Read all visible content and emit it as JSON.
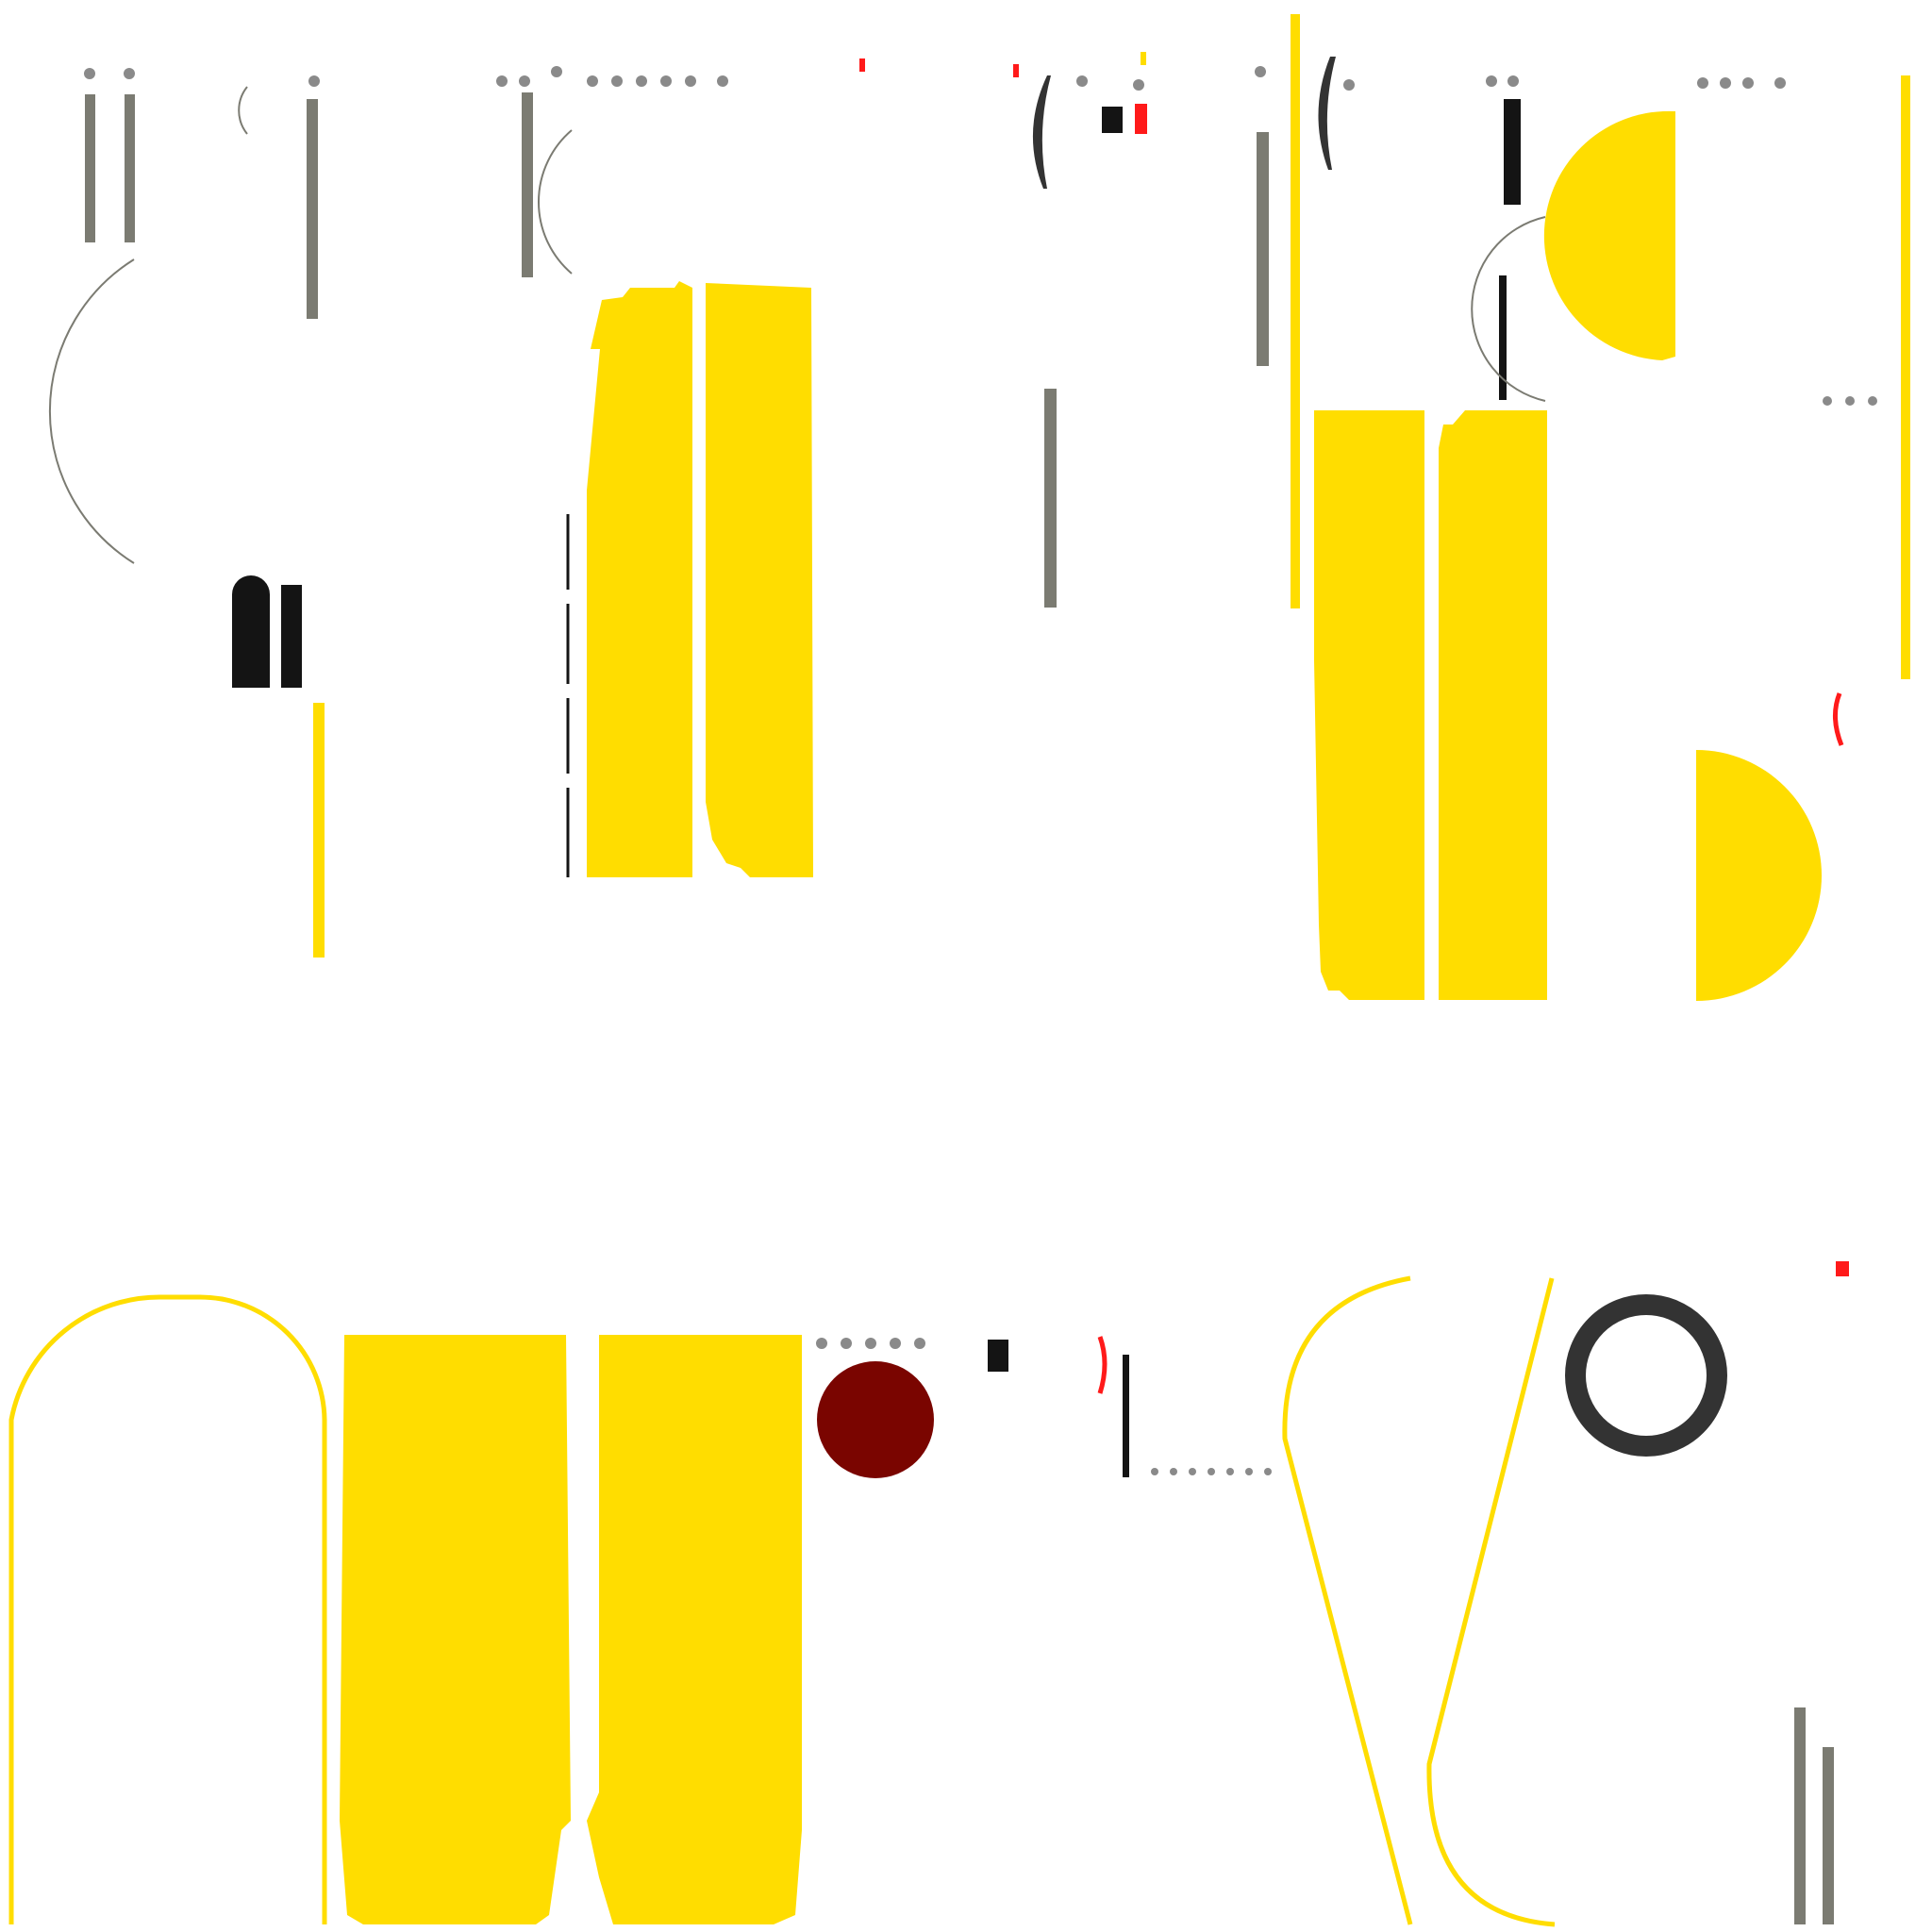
{
  "colors": {
    "background": "#ffffff",
    "yellow": "#ffdd00",
    "gray": "#7b7b72",
    "dot_gray": "#8a8a8a",
    "black": "#141414",
    "dark_ring": "#333333",
    "red": "#ff1a1a",
    "maroon": "#7a0500"
  }
}
